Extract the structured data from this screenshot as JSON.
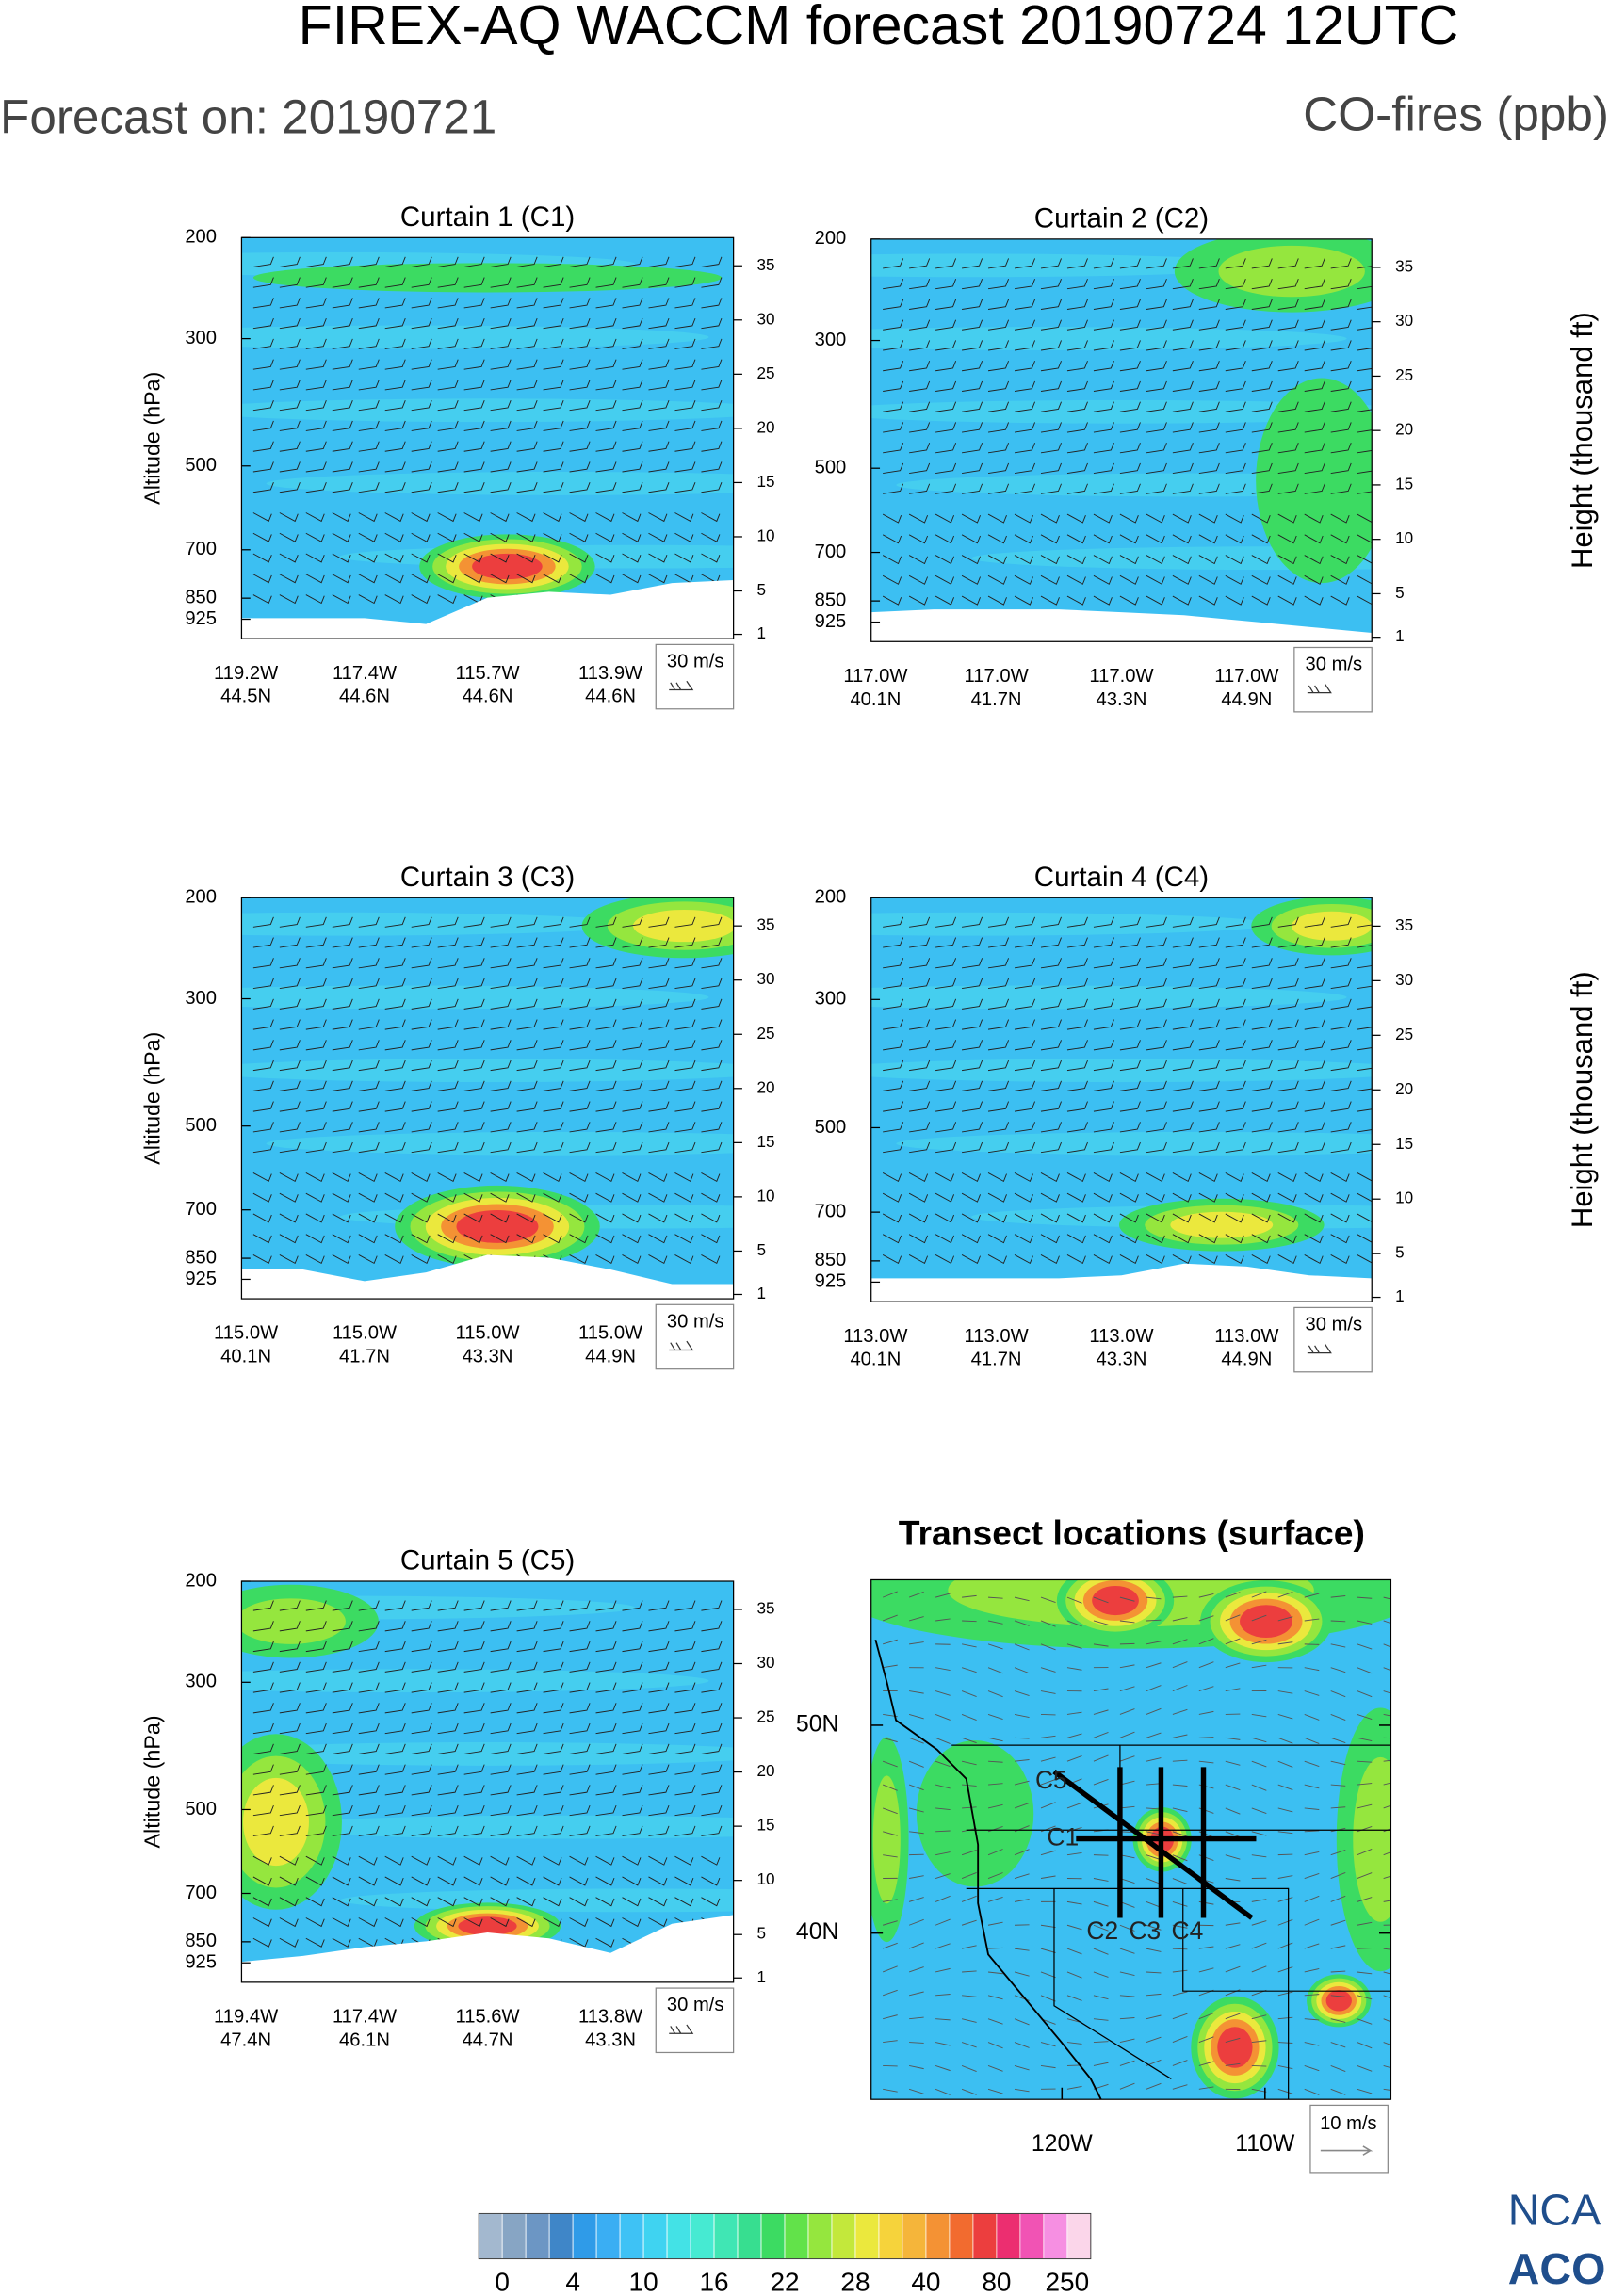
{
  "header": {
    "title": "FIREX-AQ WACCM forecast 20190724 12UTC",
    "forecast_on": "Forecast on: 20190721",
    "variable": "CO-fires (ppb)"
  },
  "chart_data": [
    {
      "type": "contour",
      "title": "Curtain 1 (C1)",
      "ylabel": "Altitude (hPa)",
      "log_y": true,
      "ylim": [
        200,
        1000
      ],
      "yticks": [
        200,
        300,
        500,
        700,
        850,
        925
      ],
      "y2lim": [
        0.6,
        37.6
      ],
      "y2ticks": [
        1,
        5,
        10,
        15,
        20,
        25,
        30,
        35
      ],
      "x_labels": [
        [
          "119.2W",
          "44.5N"
        ],
        [
          "117.4W",
          "44.6N"
        ],
        [
          "115.7W",
          "44.6N"
        ],
        [
          "113.9W",
          "44.6N"
        ]
      ],
      "wind_key": "30 m/s"
    },
    {
      "type": "contour",
      "title": "Curtain 2 (C2)",
      "y2label": "Height (thousand ft)",
      "log_y": true,
      "ylim": [
        200,
        1000
      ],
      "yticks": [
        200,
        300,
        500,
        700,
        850,
        925
      ],
      "y2lim": [
        0.6,
        37.6
      ],
      "y2ticks": [
        1,
        5,
        10,
        15,
        20,
        25,
        30,
        35
      ],
      "x_labels": [
        [
          "117.0W",
          "40.1N"
        ],
        [
          "117.0W",
          "41.7N"
        ],
        [
          "117.0W",
          "43.3N"
        ],
        [
          "117.0W",
          "44.9N"
        ]
      ],
      "wind_key": "30 m/s"
    },
    {
      "type": "contour",
      "title": "Curtain 3 (C3)",
      "ylabel": "Altitude (hPa)",
      "log_y": true,
      "ylim": [
        200,
        1000
      ],
      "yticks": [
        200,
        300,
        500,
        700,
        850,
        925
      ],
      "y2lim": [
        0.6,
        37.6
      ],
      "y2ticks": [
        1,
        5,
        10,
        15,
        20,
        25,
        30,
        35
      ],
      "x_labels": [
        [
          "115.0W",
          "40.1N"
        ],
        [
          "115.0W",
          "41.7N"
        ],
        [
          "115.0W",
          "43.3N"
        ],
        [
          "115.0W",
          "44.9N"
        ]
      ],
      "wind_key": "30 m/s"
    },
    {
      "type": "contour",
      "title": "Curtain 4 (C4)",
      "y2label": "Height (thousand ft)",
      "log_y": true,
      "ylim": [
        200,
        1000
      ],
      "yticks": [
        200,
        300,
        500,
        700,
        850,
        925
      ],
      "y2lim": [
        0.6,
        37.6
      ],
      "y2ticks": [
        1,
        5,
        10,
        15,
        20,
        25,
        30,
        35
      ],
      "x_labels": [
        [
          "113.0W",
          "40.1N"
        ],
        [
          "113.0W",
          "41.7N"
        ],
        [
          "113.0W",
          "43.3N"
        ],
        [
          "113.0W",
          "44.9N"
        ]
      ],
      "wind_key": "30 m/s"
    },
    {
      "type": "contour",
      "title": "Curtain 5 (C5)",
      "ylabel": "Altitude (hPa)",
      "log_y": true,
      "ylim": [
        200,
        1000
      ],
      "yticks": [
        200,
        300,
        500,
        700,
        850,
        925
      ],
      "y2lim": [
        0.6,
        37.6
      ],
      "y2ticks": [
        1,
        5,
        10,
        15,
        20,
        25,
        30,
        35
      ],
      "x_labels": [
        [
          "119.4W",
          "47.4N"
        ],
        [
          "117.4W",
          "46.1N"
        ],
        [
          "115.6W",
          "44.7N"
        ],
        [
          "113.8W",
          "43.3N"
        ]
      ],
      "wind_key": "30 m/s"
    },
    {
      "type": "map",
      "title": "Transect locations (surface)",
      "xlim": [
        -129.4,
        -103.8
      ],
      "ylim": [
        32,
        57
      ],
      "xticks": [
        {
          "value": -120,
          "label": "120W"
        },
        {
          "value": -110,
          "label": "110W"
        }
      ],
      "yticks": [
        {
          "value": 50,
          "label": "50N"
        },
        {
          "value": 40,
          "label": "40N"
        }
      ],
      "transects": [
        "C1",
        "C2",
        "C3",
        "C4",
        "C5"
      ],
      "wind_key": "10 m/s"
    },
    {
      "type": "colorbar",
      "ticks": [
        0,
        4,
        10,
        16,
        22,
        28,
        40,
        80,
        250
      ],
      "colors": [
        "#a3b8cf",
        "#87a5c4",
        "#6c96c4",
        "#3f86c8",
        "#2f9be8",
        "#3aaef3",
        "#3ec2f5",
        "#3fd3f1",
        "#43e2e6",
        "#46ead2",
        "#40e6b4",
        "#37de90",
        "#3cdb62",
        "#62e24a",
        "#95e63e",
        "#c3e83b",
        "#ebe83d",
        "#f6d33b",
        "#f5b53a",
        "#f49234",
        "#f26b2f",
        "#ec3e3e",
        "#ec2e70",
        "#f153b4",
        "#f68fe2",
        "#fbd6ea"
      ]
    }
  ],
  "logo": [
    "NCA",
    "ACO"
  ]
}
